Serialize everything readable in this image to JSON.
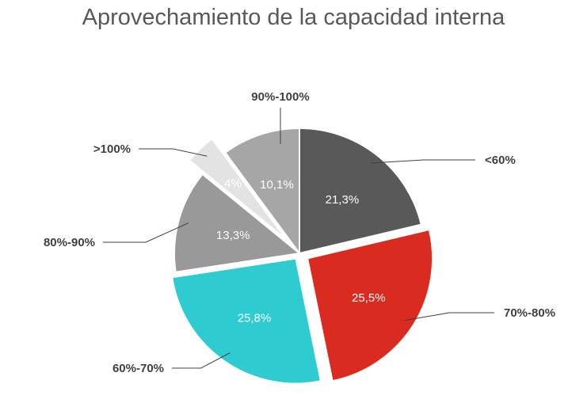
{
  "chart_data": {
    "type": "pie",
    "title": "Aprovechamiento de la capacidad interna",
    "slices": [
      {
        "label": "<60%",
        "value": 21.3,
        "display": "21,3%",
        "color": "#595959"
      },
      {
        "label": "70%-80%",
        "value": 25.5,
        "display": "25,5%",
        "color": "#D92B1F"
      },
      {
        "label": "60%-70%",
        "value": 25.8,
        "display": "25,8%",
        "color": "#2ECCD1"
      },
      {
        "label": "80%-90%",
        "value": 13.3,
        "display": "13,3%",
        "color": "#999999"
      },
      {
        "label": ">100%",
        "value": 4,
        "display": "4%",
        "color": "#E3E3E3"
      },
      {
        "label": "90%-100%",
        "value": 10.1,
        "display": "10,1%",
        "color": "#A6A6A6"
      }
    ],
    "legend": "none"
  }
}
